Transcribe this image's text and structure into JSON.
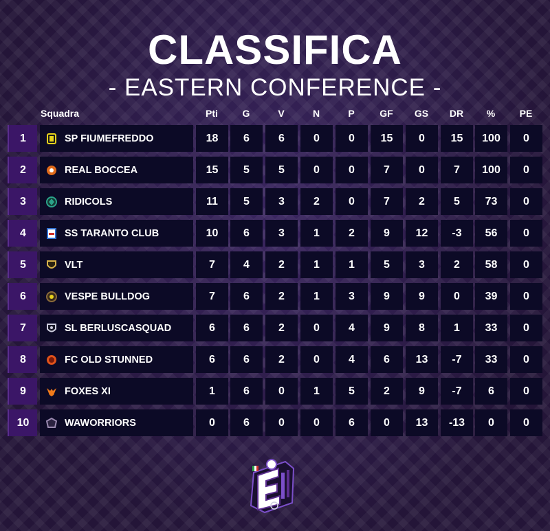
{
  "title": "CLASSIFICA",
  "subtitle": "- EASTERN CONFERENCE -",
  "columns": {
    "team": "Squadra",
    "pti": "Pti",
    "g": "G",
    "v": "V",
    "n": "N",
    "p": "P",
    "gf": "GF",
    "gs": "GS",
    "dr": "DR",
    "pct": "%",
    "pe": "PE"
  },
  "standings": [
    {
      "rank": "1",
      "team": "SP FIUMEFREDDO",
      "pti": "18",
      "g": "6",
      "v": "6",
      "n": "0",
      "p": "0",
      "gf": "15",
      "gs": "0",
      "dr": "15",
      "pct": "100",
      "pe": "0"
    },
    {
      "rank": "2",
      "team": "REAL BOCCEA",
      "pti": "15",
      "g": "5",
      "v": "5",
      "n": "0",
      "p": "0",
      "gf": "7",
      "gs": "0",
      "dr": "7",
      "pct": "100",
      "pe": "0"
    },
    {
      "rank": "3",
      "team": "RIDICOLS",
      "pti": "11",
      "g": "5",
      "v": "3",
      "n": "2",
      "p": "0",
      "gf": "7",
      "gs": "2",
      "dr": "5",
      "pct": "73",
      "pe": "0"
    },
    {
      "rank": "4",
      "team": "SS TARANTO CLUB",
      "pti": "10",
      "g": "6",
      "v": "3",
      "n": "1",
      "p": "2",
      "gf": "9",
      "gs": "12",
      "dr": "-3",
      "pct": "56",
      "pe": "0"
    },
    {
      "rank": "5",
      "team": "VLT",
      "pti": "7",
      "g": "4",
      "v": "2",
      "n": "1",
      "p": "1",
      "gf": "5",
      "gs": "3",
      "dr": "2",
      "pct": "58",
      "pe": "0"
    },
    {
      "rank": "6",
      "team": "VESPE BULLDOG",
      "pti": "7",
      "g": "6",
      "v": "2",
      "n": "1",
      "p": "3",
      "gf": "9",
      "gs": "9",
      "dr": "0",
      "pct": "39",
      "pe": "0"
    },
    {
      "rank": "7",
      "team": "SL BERLUSCASQUAD",
      "pti": "6",
      "g": "6",
      "v": "2",
      "n": "0",
      "p": "4",
      "gf": "9",
      "gs": "8",
      "dr": "1",
      "pct": "33",
      "pe": "0"
    },
    {
      "rank": "8",
      "team": "FC OLD STUNNED",
      "pti": "6",
      "g": "6",
      "v": "2",
      "n": "0",
      "p": "4",
      "gf": "6",
      "gs": "13",
      "dr": "-7",
      "pct": "33",
      "pe": "0"
    },
    {
      "rank": "9",
      "team": "FOXES XI",
      "pti": "1",
      "g": "6",
      "v": "0",
      "n": "1",
      "p": "5",
      "gf": "2",
      "gs": "9",
      "dr": "-7",
      "pct": "6",
      "pe": "0"
    },
    {
      "rank": "10",
      "team": "WAWORRIORS",
      "pti": "0",
      "g": "6",
      "v": "0",
      "n": "0",
      "p": "6",
      "gf": "0",
      "gs": "13",
      "dr": "-13",
      "pct": "0",
      "pe": "0"
    }
  ],
  "crests": [
    {
      "icon": "crest-fiumefreddo-icon",
      "color": "#e8d21c"
    },
    {
      "icon": "crest-boccea-icon",
      "color": "#e06a1a"
    },
    {
      "icon": "crest-ridicols-icon",
      "color": "#2ba38a"
    },
    {
      "icon": "crest-taranto-icon",
      "color": "#2f6fd1"
    },
    {
      "icon": "crest-vlt-icon",
      "color": "#d8b24a"
    },
    {
      "icon": "crest-vespe-icon",
      "color": "#8a6a3a"
    },
    {
      "icon": "crest-berlusca-icon",
      "color": "#cfcfe0"
    },
    {
      "icon": "crest-oldstunned-icon",
      "color": "#e0521a"
    },
    {
      "icon": "crest-foxes-icon",
      "color": "#f07a1a"
    },
    {
      "icon": "crest-waworriors-icon",
      "color": "#9a8ab0"
    }
  ],
  "colors": {
    "background": "#2a1a45",
    "cell": "#0c0a26",
    "rank_cell": "#3b1667",
    "accent": "#7b4fc9"
  },
  "logo_icon": "league-e-logo-icon"
}
